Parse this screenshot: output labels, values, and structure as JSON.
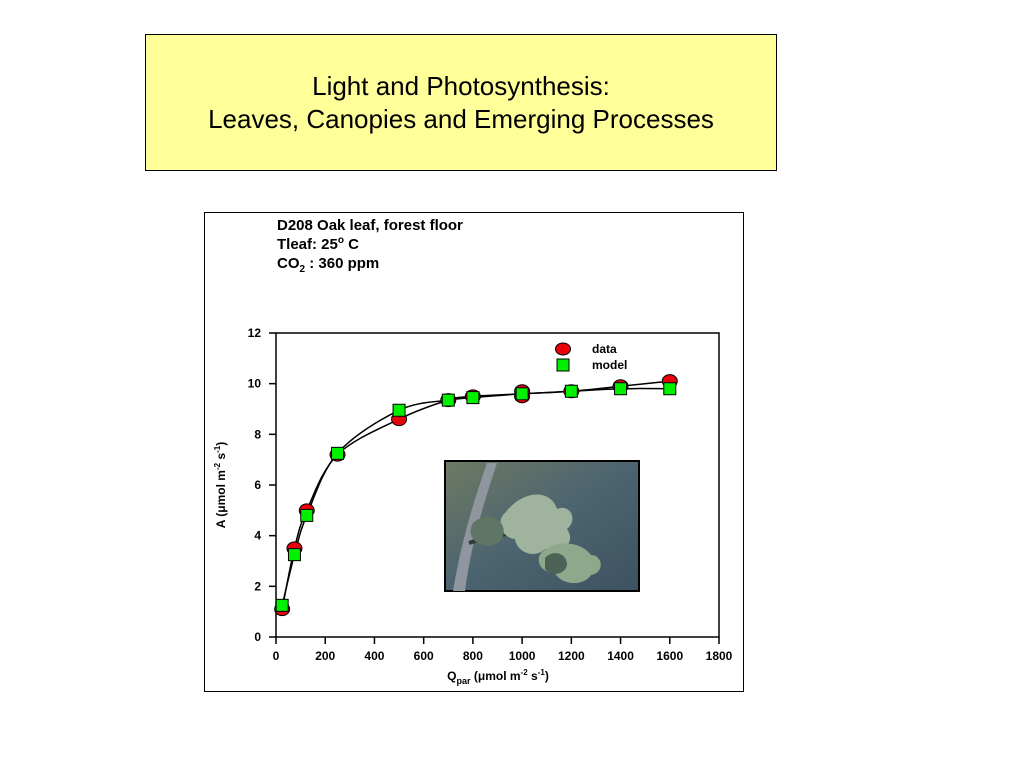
{
  "slide": {
    "title_line1": "Light and Photosynthesis:",
    "title_line2": "Leaves, Canopies and Emerging Processes"
  },
  "colors": {
    "title_box_bg": "#ffff99",
    "data_marker": "#e8000b",
    "model_marker": "#00f000"
  },
  "chart_data": {
    "type": "scatter",
    "annotation": {
      "line1": "D208 Oak leaf, forest floor",
      "line2_main": "Tleaf: 25",
      "line2_sup": "o",
      "line2_end": " C",
      "line3_main": "CO",
      "line3_sub": "2",
      "line3_end": " : 360 ppm"
    },
    "xlabel": {
      "main": "Q",
      "sub": "par",
      "rest": " (μmol m",
      "sup1": "-2",
      "mid": " s",
      "sup2": "-1",
      "end": ")"
    },
    "ylabel": {
      "main": "A (μmol m",
      "sup1": "-2",
      "mid": " s",
      "sup2": "-1",
      "end": ")"
    },
    "xlim": [
      0,
      1800
    ],
    "ylim": [
      0,
      12
    ],
    "xticks": [
      0,
      200,
      400,
      600,
      800,
      1000,
      1200,
      1400,
      1600,
      1800
    ],
    "yticks": [
      0,
      2,
      4,
      6,
      8,
      10,
      12
    ],
    "legend_position": "top-right",
    "inset_image": "oak-leaf-photo",
    "series": [
      {
        "name": "data",
        "marker": "circle",
        "color": "#e8000b",
        "x": [
          25,
          75,
          125,
          250,
          500,
          700,
          800,
          1000,
          1000,
          1200,
          1400,
          1600
        ],
        "y": [
          1.1,
          3.5,
          5.0,
          7.2,
          8.6,
          9.35,
          9.5,
          9.5,
          9.7,
          9.7,
          9.9,
          10.1
        ]
      },
      {
        "name": "model",
        "marker": "square",
        "color": "#00f000",
        "x": [
          25,
          75,
          125,
          250,
          500,
          700,
          800,
          1000,
          1200,
          1400,
          1600
        ],
        "y": [
          1.25,
          3.25,
          4.8,
          7.25,
          8.95,
          9.35,
          9.45,
          9.6,
          9.7,
          9.8,
          9.8
        ]
      }
    ]
  }
}
